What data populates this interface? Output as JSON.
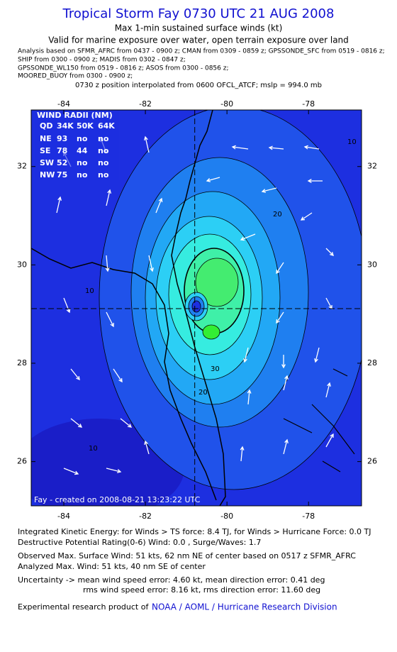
{
  "header": {
    "title": "Tropical Storm Fay 0730 UTC 21 AUG 2008",
    "subtitle": "Max 1-min sustained surface winds (kt)",
    "validity": "Valid for marine exposure over water, open terrain exposure over land",
    "analysis_lines": [
      "Analysis based on  SFMR_AFRC from 0437 - 0900 z;  CMAN from 0309 - 0859 z;  GPSSONDE_SFC from 0519 - 0816 z;",
      "SHIP from 0300 - 0900 z;  MADIS from 0302 - 0847 z;",
      "GPSSONDE_WL150 from 0519 - 0816 z;  ASOS from 0300 - 0856 z;",
      "MOORED_BUOY from 0300 - 0900 z;"
    ],
    "position_note": "0730 z position interpolated from 0600 OFCL_ATCF; mslp = 994.0 mb"
  },
  "map": {
    "xlim": [
      -84.8,
      -76.7
    ],
    "ylim": [
      25.1,
      33.15
    ],
    "xticks": [
      -84,
      -82,
      -80,
      -78
    ],
    "yticks": [
      26,
      28,
      30,
      32
    ],
    "storm_center": {
      "lon": -80.79,
      "lat": 29.11
    },
    "contour_labels": [
      "10",
      "10",
      "10",
      "20",
      "20",
      "30"
    ],
    "footer": "Fay - created on 2008-08-21 13:23:22 UTC"
  },
  "wind_radii": {
    "title": "WIND RADII (NM)",
    "columns": [
      "QD",
      "34K",
      "50K",
      "64K"
    ],
    "rows": [
      [
        "NE",
        93,
        "no",
        "no"
      ],
      [
        "SE",
        78,
        44,
        "no"
      ],
      [
        "SW",
        52,
        "no",
        "no"
      ],
      [
        "NW",
        75,
        "no",
        "no"
      ]
    ]
  },
  "info": {
    "ike": "Integrated Kinetic Energy:  for Winds > TS force: 8.4 TJ,  for Winds > Hurricane Force: 0.0 TJ",
    "dpr": "Destructive Potential Rating(0-6)   Wind: 0.0 , Surge/Waves: 1.7",
    "observed": "Observed Max. Surface Wind: 51 kts, 62 nm NE of center based on 0517 z SFMR_AFRC",
    "analyzed": "Analyzed Max. Wind: 51 kts, 40 nm SE of center",
    "uncertainty1": "Uncertainty -> mean wind speed error: 4.60 kt,   mean direction error: 0.41 deg",
    "uncertainty2": "rms wind speed error: 8.16 kt,   rms direction error: 11.60 deg",
    "product": "Experimental research product of",
    "product_link": "NOAA / AOML / Hurricane Research Division"
  }
}
